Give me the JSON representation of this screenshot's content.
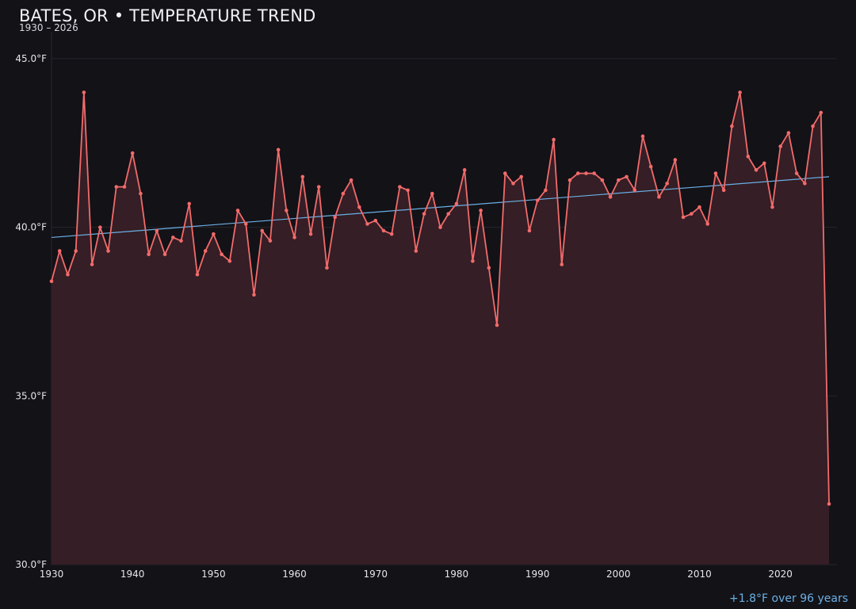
{
  "header": {
    "title": "BATES, OR • TEMPERATURE TREND",
    "subtitle": "1930 – 2026"
  },
  "footer": {
    "trend_note": "+1.8°F over 96 years"
  },
  "colors": {
    "background": "#131217",
    "series_line": "#f26b6b",
    "area_fill": "#351e25",
    "trend_line": "#6ab0e6",
    "grid": "#26242b"
  },
  "chart_data": {
    "type": "line",
    "title": "BATES, OR • TEMPERATURE TREND",
    "subtitle": "1930 – 2026",
    "xlabel": "",
    "ylabel": "",
    "xlim": [
      1930,
      2026
    ],
    "ylim": [
      30.0,
      45.0
    ],
    "x_ticks": [
      1930,
      1940,
      1950,
      1960,
      1970,
      1980,
      1990,
      2000,
      2010,
      2020
    ],
    "x_tick_labels": [
      "1930",
      "1940",
      "1950",
      "1960",
      "1970",
      "1980",
      "1990",
      "2000",
      "2010",
      "2020"
    ],
    "y_ticks": [
      30,
      35,
      40,
      45
    ],
    "y_tick_labels": [
      "30.0°F",
      "35.0°F",
      "40.0°F",
      "45.0°F"
    ],
    "grid": true,
    "area_under_line": true,
    "x": [
      1930,
      1931,
      1932,
      1933,
      1934,
      1935,
      1936,
      1937,
      1938,
      1939,
      1940,
      1941,
      1942,
      1943,
      1944,
      1945,
      1946,
      1947,
      1948,
      1949,
      1950,
      1951,
      1952,
      1953,
      1954,
      1955,
      1956,
      1957,
      1958,
      1959,
      1960,
      1961,
      1962,
      1963,
      1964,
      1965,
      1966,
      1967,
      1968,
      1969,
      1970,
      1971,
      1972,
      1973,
      1974,
      1975,
      1976,
      1977,
      1978,
      1979,
      1980,
      1981,
      1982,
      1983,
      1984,
      1985,
      1986,
      1987,
      1988,
      1989,
      1990,
      1991,
      1992,
      1993,
      1994,
      1995,
      1996,
      1997,
      1998,
      1999,
      2000,
      2001,
      2002,
      2003,
      2004,
      2005,
      2006,
      2007,
      2008,
      2009,
      2010,
      2011,
      2012,
      2013,
      2014,
      2015,
      2016,
      2017,
      2018,
      2019,
      2020,
      2021,
      2022,
      2023,
      2024,
      2025,
      2026
    ],
    "series": [
      {
        "values": [
          38.4,
          39.3,
          38.6,
          39.3,
          44.0,
          38.9,
          40.0,
          39.3,
          41.2,
          41.2,
          42.2,
          41.0,
          39.2,
          39.9,
          39.2,
          39.7,
          39.6,
          40.7,
          38.6,
          39.3,
          39.8,
          39.2,
          39.0,
          40.5,
          40.1,
          38.0,
          39.9,
          39.6,
          42.3,
          40.5,
          39.7,
          41.5,
          39.8,
          41.2,
          38.8,
          40.3,
          41.0,
          41.4,
          40.6,
          40.1,
          40.2,
          39.9,
          39.8,
          41.2,
          41.1,
          39.3,
          40.4,
          41.0,
          40.0,
          40.4,
          40.7,
          41.7,
          39.0,
          40.5,
          38.8,
          37.1,
          41.6,
          41.3,
          41.5,
          39.9,
          40.8,
          41.1,
          42.6,
          38.9,
          41.4,
          41.6,
          41.6,
          41.6,
          41.4,
          40.9,
          41.4,
          41.5,
          41.1,
          42.7,
          41.8,
          40.9,
          41.3,
          42.0,
          40.3,
          40.4,
          40.6,
          40.1,
          41.6,
          41.1,
          43.0,
          44.0,
          42.1,
          41.7,
          41.9,
          40.6,
          42.4,
          42.8,
          41.6,
          41.3,
          43.0,
          43.4,
          31.8
        ]
      }
    ],
    "trend": {
      "x": [
        1930,
        2026
      ],
      "y": [
        39.7,
        41.5
      ],
      "change_per_period": 1.8
    }
  }
}
